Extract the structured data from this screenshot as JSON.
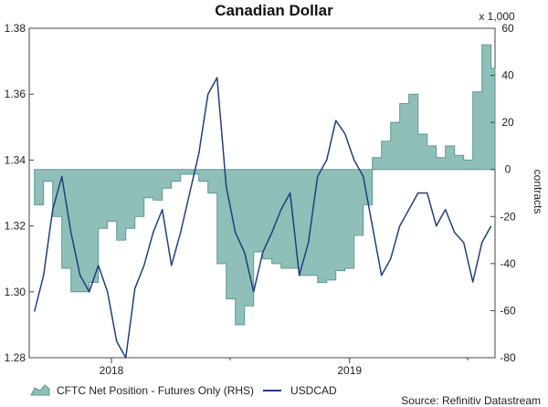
{
  "chart_data": {
    "type": "line",
    "title": "Canadian Dollar",
    "source": "Source: Refinitiv Datastream",
    "x_ticks": [
      "2018",
      "2019"
    ],
    "left_axis": {
      "ylim": [
        1.28,
        1.38
      ],
      "ticks": [
        "1.28",
        "1.30",
        "1.32",
        "1.34",
        "1.36",
        "1.38"
      ]
    },
    "right_axis": {
      "unit": "x 1,000",
      "ylabel": "contracts",
      "ylim": [
        -80,
        60
      ],
      "ticks": [
        "-80",
        "-60",
        "-40",
        "-20",
        "0",
        "20",
        "40",
        "60"
      ]
    },
    "legend": {
      "placement": "bottom"
    },
    "colors": {
      "area_fill": "#8fbfb8",
      "area_stroke": "#5a9a92",
      "line": "#1f3f7f"
    },
    "series": [
      {
        "name": "CFTC Net Position - Futures Only (RHS)",
        "type": "area",
        "axis": "right",
        "x": [
          "2017-09-05",
          "2017-09-19",
          "2017-10-03",
          "2017-10-17",
          "2017-10-31",
          "2017-11-14",
          "2017-11-28",
          "2017-12-12",
          "2017-12-26",
          "2018-01-09",
          "2018-01-23",
          "2018-02-06",
          "2018-02-20",
          "2018-03-06",
          "2018-03-20",
          "2018-04-03",
          "2018-04-17",
          "2018-05-01",
          "2018-05-15",
          "2018-05-29",
          "2018-06-12",
          "2018-06-26",
          "2018-07-10",
          "2018-07-24",
          "2018-08-07",
          "2018-08-21",
          "2018-09-04",
          "2018-09-18",
          "2018-10-02",
          "2018-10-16",
          "2018-10-30",
          "2018-11-13",
          "2018-11-27",
          "2018-12-11",
          "2018-12-25",
          "2019-01-08",
          "2019-01-22",
          "2019-02-05",
          "2019-02-19",
          "2019-03-05",
          "2019-03-19",
          "2019-04-02",
          "2019-04-16",
          "2019-04-30",
          "2019-05-14",
          "2019-05-28",
          "2019-06-11",
          "2019-06-25",
          "2019-07-09",
          "2019-07-23",
          "2019-08-06"
        ],
        "values": [
          -15,
          -5,
          -20,
          -42,
          -52,
          -52,
          -48,
          -25,
          -22,
          -30,
          -25,
          -20,
          -12,
          -13,
          -8,
          -5,
          -2,
          -2,
          -5,
          -10,
          -40,
          -55,
          -66,
          -58,
          -35,
          -38,
          -40,
          -42,
          -42,
          -45,
          -45,
          -48,
          -47,
          -43,
          -42,
          -28,
          -15,
          5,
          12,
          20,
          28,
          32,
          15,
          10,
          5,
          10,
          6,
          4,
          33,
          53,
          43
        ]
      },
      {
        "name": "USDCAD",
        "type": "line",
        "axis": "left",
        "x": [
          "2017-09-05",
          "2017-09-19",
          "2017-10-03",
          "2017-10-17",
          "2017-10-31",
          "2017-11-14",
          "2017-11-28",
          "2017-12-12",
          "2017-12-26",
          "2018-01-09",
          "2018-01-23",
          "2018-02-06",
          "2018-02-20",
          "2018-03-06",
          "2018-03-20",
          "2018-04-03",
          "2018-04-17",
          "2018-05-01",
          "2018-05-15",
          "2018-05-29",
          "2018-06-12",
          "2018-06-26",
          "2018-07-10",
          "2018-07-24",
          "2018-08-07",
          "2018-08-21",
          "2018-09-04",
          "2018-09-18",
          "2018-10-02",
          "2018-10-16",
          "2018-10-30",
          "2018-11-13",
          "2018-11-27",
          "2018-12-11",
          "2018-12-25",
          "2019-01-08",
          "2019-01-22",
          "2019-02-05",
          "2019-02-19",
          "2019-03-05",
          "2019-03-19",
          "2019-04-02",
          "2019-04-16",
          "2019-04-30",
          "2019-05-14",
          "2019-05-28",
          "2019-06-11",
          "2019-06-25",
          "2019-07-09",
          "2019-07-23",
          "2019-08-06"
        ],
        "values": [
          1.294,
          1.305,
          1.325,
          1.335,
          1.318,
          1.305,
          1.3,
          1.308,
          1.3,
          1.285,
          1.28,
          1.301,
          1.308,
          1.318,
          1.325,
          1.308,
          1.318,
          1.33,
          1.342,
          1.36,
          1.365,
          1.332,
          1.318,
          1.312,
          1.3,
          1.312,
          1.318,
          1.325,
          1.33,
          1.305,
          1.315,
          1.335,
          1.34,
          1.352,
          1.348,
          1.34,
          1.335,
          1.32,
          1.305,
          1.31,
          1.32,
          1.325,
          1.33,
          1.33,
          1.32,
          1.325,
          1.318,
          1.315,
          1.303,
          1.315,
          1.32
        ]
      }
    ]
  }
}
